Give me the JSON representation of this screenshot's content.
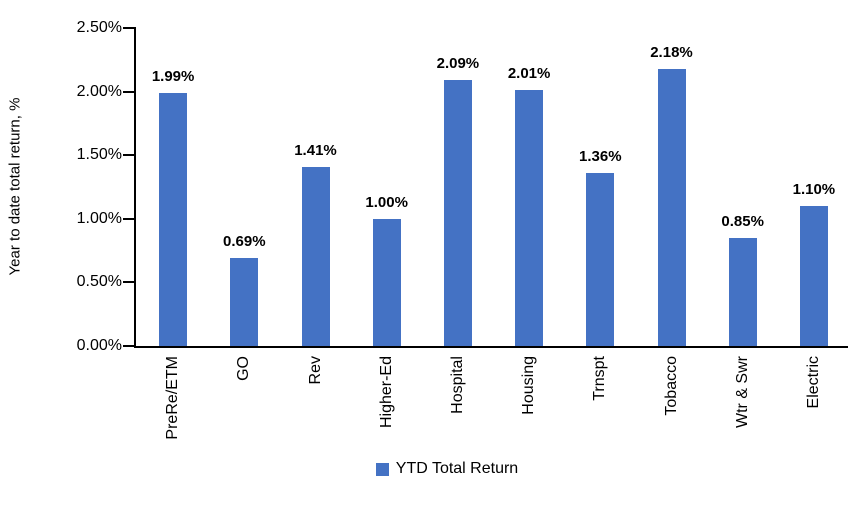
{
  "chart_data": {
    "type": "bar",
    "title": "",
    "xlabel": "",
    "ylabel": "Year to date total return, %",
    "categories": [
      "PreRe/ETM",
      "GO",
      "Rev",
      "Higher-Ed",
      "Hospital",
      "Housing",
      "Trnspt",
      "Tobacco",
      "Wtr & Swr",
      "Electric"
    ],
    "series": [
      {
        "name": "YTD Total Return",
        "values": [
          1.99,
          0.69,
          1.41,
          1.0,
          2.09,
          2.01,
          1.36,
          2.18,
          0.85,
          1.1
        ]
      }
    ],
    "data_labels": [
      "1.99%",
      "0.69%",
      "1.41%",
      "1.00%",
      "2.09%",
      "2.01%",
      "1.36%",
      "2.18%",
      "0.85%",
      "1.10%"
    ],
    "ylim": [
      0,
      2.5
    ],
    "yticks": [
      {
        "value": 0.0,
        "label": "0.00%"
      },
      {
        "value": 0.5,
        "label": "0.50%"
      },
      {
        "value": 1.0,
        "label": "1.00%"
      },
      {
        "value": 1.5,
        "label": "1.50%"
      },
      {
        "value": 2.0,
        "label": "2.00%"
      },
      {
        "value": 2.5,
        "label": "2.50%"
      }
    ],
    "grid": false,
    "legend": {
      "label": "YTD Total Return",
      "position": "bottom",
      "swatch_color": "#4472C4"
    },
    "bar_color": "#4472C4",
    "axis_color": "#000000",
    "text_color": "#000000"
  }
}
